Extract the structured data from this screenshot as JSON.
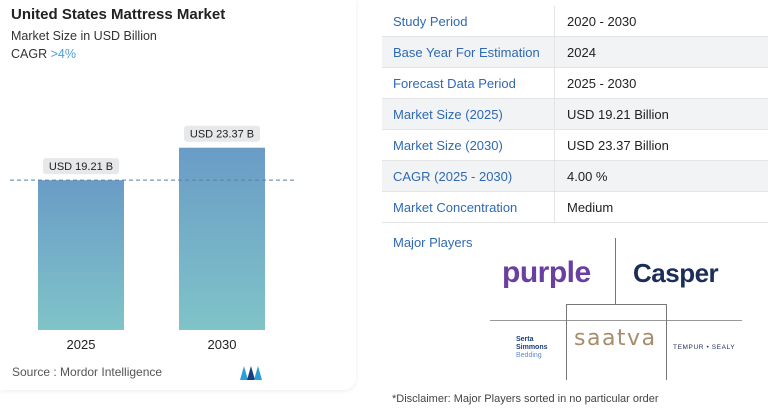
{
  "header": {
    "title": "United States Mattress Market",
    "subtitle": "Market Size in USD Billion",
    "cagr_label": "CAGR ",
    "cagr_value": ">4%"
  },
  "chart_data": {
    "type": "bar",
    "categories": [
      "2025",
      "2030"
    ],
    "values": [
      19.21,
      23.37
    ],
    "data_labels": [
      "USD 19.21 B",
      "USD 23.37 B"
    ],
    "ylim": [
      0,
      25
    ],
    "colors": {
      "bar_top": "#6a9cc6",
      "bar_bottom": "#7fc4c8",
      "reference_line": "#5a7fa8"
    }
  },
  "footer": {
    "source": "Source :  Mordor Intelligence"
  },
  "table": {
    "rows": [
      {
        "key": "Study Period",
        "value": "2020 - 2030"
      },
      {
        "key": "Base Year For Estimation",
        "value": "2024"
      },
      {
        "key": "Forecast Data Period",
        "value": "2025 - 2030"
      },
      {
        "key": "Market Size (2025)",
        "value": "USD 19.21 Billion"
      },
      {
        "key": "Market Size (2030)",
        "value": "USD 23.37 Billion"
      },
      {
        "key": "CAGR (2025 - 2030)",
        "value": "4.00 %"
      },
      {
        "key": "Market Concentration",
        "value": "Medium"
      }
    ]
  },
  "players": {
    "label": "Major Players",
    "purple": "purple",
    "casper": "Casper",
    "serta_line1": "Serta",
    "serta_line2": "Simmons",
    "serta_line3": "Bedding",
    "saatva": "saatva",
    "tempur": "TEMPUR • SEALY"
  },
  "disclaimer": "*Disclaimer: Major Players sorted in no particular order"
}
